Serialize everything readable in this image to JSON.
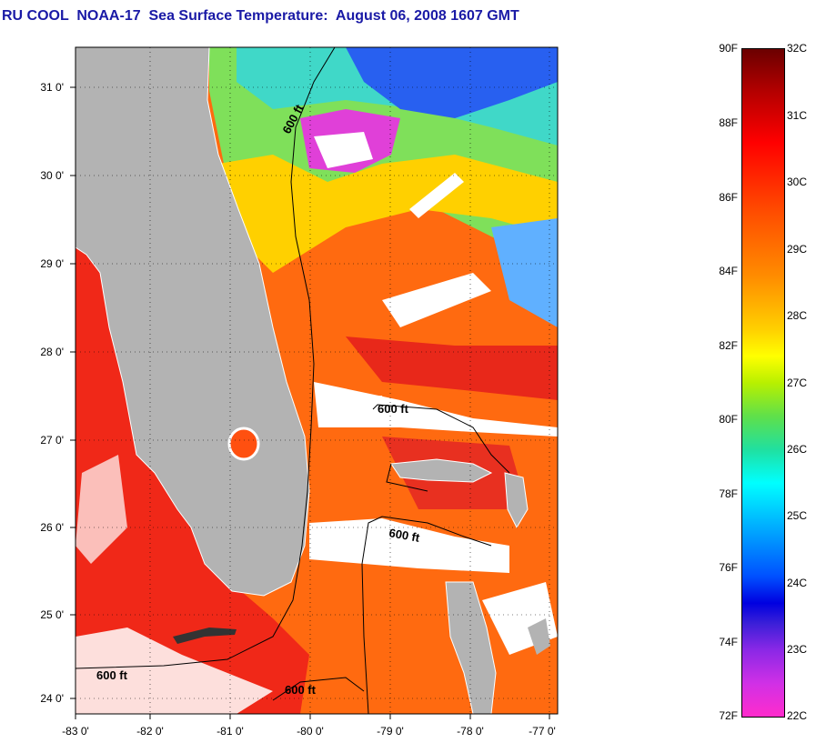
{
  "title": "RU COOL  NOAA-17  Sea Surface Temperature:  August 06, 2008 1607 GMT",
  "map": {
    "lat_ticks": [
      "31 0'",
      "30 0'",
      "29 0'",
      "28 0'",
      "27 0'",
      "26 0'",
      "25 0'",
      "24 0'"
    ],
    "lon_ticks": [
      "-83 0'",
      "-82 0'",
      "-81 0'",
      "-80 0'",
      "-79 0'",
      "-78 0'",
      "-77 0'"
    ],
    "contour_labels": [
      "600 ft",
      "600 ft",
      "600 ft",
      "600 ft",
      "600 ft"
    ]
  },
  "colorbar": {
    "fahrenheit": [
      "90F",
      "88F",
      "86F",
      "84F",
      "82F",
      "80F",
      "78F",
      "76F",
      "74F",
      "72F"
    ],
    "celsius": [
      "32C",
      "31C",
      "30C",
      "29C",
      "28C",
      "27C",
      "26C",
      "25C",
      "24C",
      "23C",
      "22C"
    ]
  },
  "colors": {
    "land": "#b3b3b3",
    "title": "#1a1aa6",
    "cloud": "#ffffff"
  }
}
